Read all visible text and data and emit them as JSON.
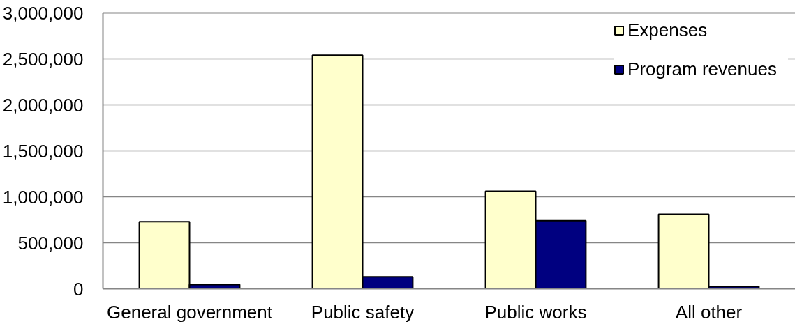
{
  "chart_data": {
    "type": "bar",
    "categories": [
      "General government",
      "Public safety",
      "Public works",
      "All other"
    ],
    "series": [
      {
        "name": "Expenses",
        "color": "#ffffcc",
        "values": [
          730000,
          2540000,
          1060000,
          810000
        ]
      },
      {
        "name": "Program revenues",
        "color": "#000080",
        "values": [
          45000,
          130000,
          740000,
          25000
        ]
      }
    ],
    "ylim": [
      0,
      3000000
    ],
    "yticks": [
      {
        "value": 0,
        "label": "0"
      },
      {
        "value": 500000,
        "label": "500,000"
      },
      {
        "value": 1000000,
        "label": "1,000,000"
      },
      {
        "value": 1500000,
        "label": "1,500,000"
      },
      {
        "value": 2000000,
        "label": "2,000,000"
      },
      {
        "value": 2500000,
        "label": "2,500,000"
      },
      {
        "value": 3000000,
        "label": "3,000,000"
      }
    ],
    "grid": "y",
    "legend": "top right"
  }
}
